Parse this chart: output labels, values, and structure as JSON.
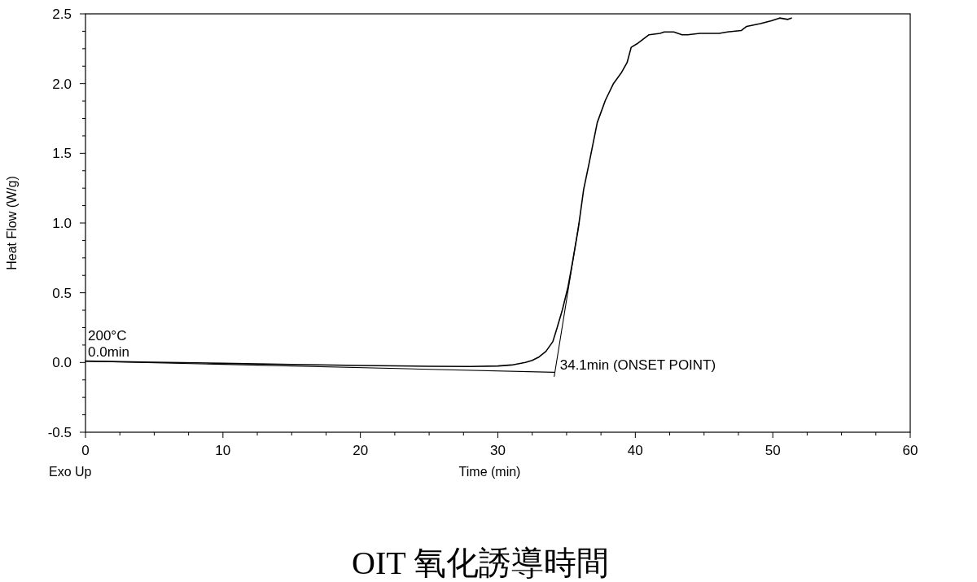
{
  "chart_data": {
    "type": "line",
    "title": "OIT 氧化誘導時間",
    "xlabel": "Time (min)",
    "ylabel": "Heat Flow (W/g)",
    "xlim": [
      0,
      60
    ],
    "xticks": [
      0,
      {
        "value": 2.5,
        "label": null
      },
      {
        "value": 5,
        "label": null
      },
      {
        "value": 7.5,
        "label": null
      },
      10,
      {
        "value": 12.5,
        "label": null
      },
      {
        "value": 15,
        "label": null
      },
      {
        "value": 17.5,
        "label": null
      },
      20,
      {
        "value": 22.5,
        "label": null
      },
      {
        "value": 25,
        "label": null
      },
      {
        "value": 27.5,
        "label": null
      },
      30,
      {
        "value": 32.5,
        "label": null
      },
      {
        "value": 35,
        "label": null
      },
      {
        "value": 37.5,
        "label": null
      },
      40,
      {
        "value": 42.5,
        "label": null
      },
      {
        "value": 45,
        "label": null
      },
      {
        "value": 47.5,
        "label": null
      },
      50,
      {
        "value": 52.5,
        "label": null
      },
      {
        "value": 55,
        "label": null
      },
      {
        "value": 57.5,
        "label": null
      },
      60
    ],
    "ylim": [
      -0.5,
      2.5
    ],
    "yticks": [
      -0.5,
      {
        "value": -0.375,
        "label": null
      },
      {
        "value": -0.25,
        "label": null
      },
      {
        "value": -0.125,
        "label": null
      },
      {
        "value": 0,
        "label": "0.0"
      },
      {
        "value": 0.125,
        "label": null
      },
      {
        "value": 0.25,
        "label": null
      },
      {
        "value": 0.375,
        "label": null
      },
      0.5,
      {
        "value": 0.625,
        "label": null
      },
      {
        "value": 0.75,
        "label": null
      },
      {
        "value": 0.875,
        "label": null
      },
      {
        "value": 1,
        "label": "1.0"
      },
      {
        "value": 1.125,
        "label": null
      },
      {
        "value": 1.25,
        "label": null
      },
      {
        "value": 1.375,
        "label": null
      },
      1.5,
      {
        "value": 1.625,
        "label": null
      },
      {
        "value": 1.75,
        "label": null
      },
      {
        "value": 1.875,
        "label": null
      },
      {
        "value": 2,
        "label": "2.0"
      },
      {
        "value": 2.125,
        "label": null
      },
      {
        "value": 2.25,
        "label": null
      },
      {
        "value": 2.375,
        "label": null
      },
      2.5
    ],
    "series": [
      {
        "color": "#000000",
        "x": [
          0,
          5,
          10,
          15,
          20,
          25,
          28,
          30,
          31,
          32,
          32.5,
          33,
          33.5,
          34,
          34.3,
          34.7,
          35.1,
          35.45,
          35.85,
          36.24,
          36.64,
          37.23,
          37.82,
          38.41,
          39.0,
          39.4,
          39.7,
          40.2,
          41.0,
          41.8,
          42.1,
          42.8,
          43.4,
          43.8,
          44.7,
          46.1,
          46.7,
          47.7,
          48.1,
          49.1,
          49.9,
          50.5,
          51.1,
          51.35
        ],
        "values": [
          0.01,
          0.002,
          -0.006,
          -0.014,
          -0.021,
          -0.027,
          -0.029,
          -0.025,
          -0.018,
          0.0,
          0.015,
          0.04,
          0.08,
          0.15,
          0.245,
          0.38,
          0.54,
          0.73,
          0.96,
          1.24,
          1.43,
          1.72,
          1.88,
          2.0,
          2.08,
          2.15,
          2.26,
          2.29,
          2.35,
          2.36,
          2.37,
          2.37,
          2.35,
          2.35,
          2.36,
          2.36,
          2.37,
          2.38,
          2.41,
          2.43,
          2.45,
          2.47,
          2.46,
          2.47
        ]
      },
      {
        "type": "line",
        "color": "#000000",
        "x": [
          0,
          34.1
        ],
        "values": [
          0.01,
          -0.07
        ]
      },
      {
        "type": "line",
        "color": "#000000",
        "x": [
          34.1,
          35.9
        ],
        "values": [
          -0.1,
          1.0
        ]
      }
    ],
    "annotations": [
      "200°C",
      "0.0min",
      {
        "text": "34.1min (ONSET POINT)",
        "x": 34.1,
        "y": -0.07
      },
      "Exo Up"
    ]
  }
}
